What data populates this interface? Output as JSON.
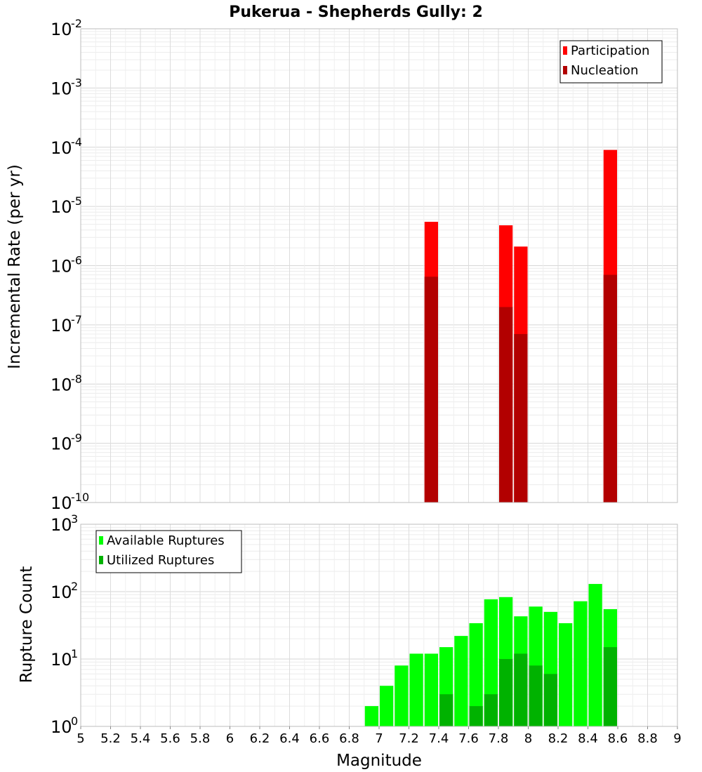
{
  "chart_data": [
    {
      "type": "bar",
      "title": "Pukerua - Shepherds Gully: 2",
      "ylabel": "Incremental Rate (per yr)",
      "yscale": "log",
      "ylim_exp": [
        -10,
        -2
      ],
      "xlim": [
        5,
        9
      ],
      "legend_position": "top-right",
      "grid": true,
      "series": [
        {
          "name": "Participation",
          "color": "#ff0000",
          "points": [
            {
              "x": 7.35,
              "y": 5.5e-06
            },
            {
              "x": 7.85,
              "y": 4.8e-06
            },
            {
              "x": 7.95,
              "y": 2.1e-06
            },
            {
              "x": 8.55,
              "y": 9e-05
            }
          ]
        },
        {
          "name": "Nucleation",
          "color": "#b20000",
          "points": [
            {
              "x": 7.35,
              "y": 6.5e-07
            },
            {
              "x": 7.85,
              "y": 2e-07
            },
            {
              "x": 7.95,
              "y": 7e-08
            },
            {
              "x": 8.55,
              "y": 7e-07
            }
          ]
        }
      ]
    },
    {
      "type": "bar",
      "ylabel": "Rupture Count",
      "xlabel": "Magnitude",
      "yscale": "log",
      "ylim_exp": [
        0,
        3
      ],
      "xlim": [
        5,
        9
      ],
      "xticks": [
        "5",
        "5.2",
        "5.4",
        "5.6",
        "5.8",
        "6",
        "6.2",
        "6.4",
        "6.6",
        "6.8",
        "7",
        "7.2",
        "7.4",
        "7.6",
        "7.8",
        "8",
        "8.2",
        "8.4",
        "8.6",
        "8.8",
        "9"
      ],
      "legend_position": "top-left",
      "grid": true,
      "series": [
        {
          "name": "Available Ruptures",
          "color": "#00ff00",
          "points": [
            {
              "x": 6.45,
              "y": 1
            },
            {
              "x": 6.75,
              "y": 1
            },
            {
              "x": 6.85,
              "y": 1
            },
            {
              "x": 6.95,
              "y": 2
            },
            {
              "x": 7.05,
              "y": 4
            },
            {
              "x": 7.15,
              "y": 8
            },
            {
              "x": 7.25,
              "y": 12
            },
            {
              "x": 7.35,
              "y": 12
            },
            {
              "x": 7.45,
              "y": 15
            },
            {
              "x": 7.55,
              "y": 22
            },
            {
              "x": 7.65,
              "y": 34
            },
            {
              "x": 7.75,
              "y": 77
            },
            {
              "x": 7.85,
              "y": 83
            },
            {
              "x": 7.95,
              "y": 43
            },
            {
              "x": 8.05,
              "y": 60
            },
            {
              "x": 8.15,
              "y": 50
            },
            {
              "x": 8.25,
              "y": 34
            },
            {
              "x": 8.35,
              "y": 72
            },
            {
              "x": 8.45,
              "y": 130
            },
            {
              "x": 8.55,
              "y": 55
            }
          ]
        },
        {
          "name": "Utilized Ruptures",
          "color": "#00b200",
          "points": [
            {
              "x": 7.05,
              "y": 1
            },
            {
              "x": 7.35,
              "y": 1
            },
            {
              "x": 7.45,
              "y": 3
            },
            {
              "x": 7.55,
              "y": 1
            },
            {
              "x": 7.65,
              "y": 2
            },
            {
              "x": 7.75,
              "y": 3
            },
            {
              "x": 7.85,
              "y": 10
            },
            {
              "x": 7.95,
              "y": 12
            },
            {
              "x": 8.05,
              "y": 8
            },
            {
              "x": 8.15,
              "y": 6
            },
            {
              "x": 8.25,
              "y": 1
            },
            {
              "x": 8.55,
              "y": 15
            }
          ]
        }
      ]
    }
  ]
}
